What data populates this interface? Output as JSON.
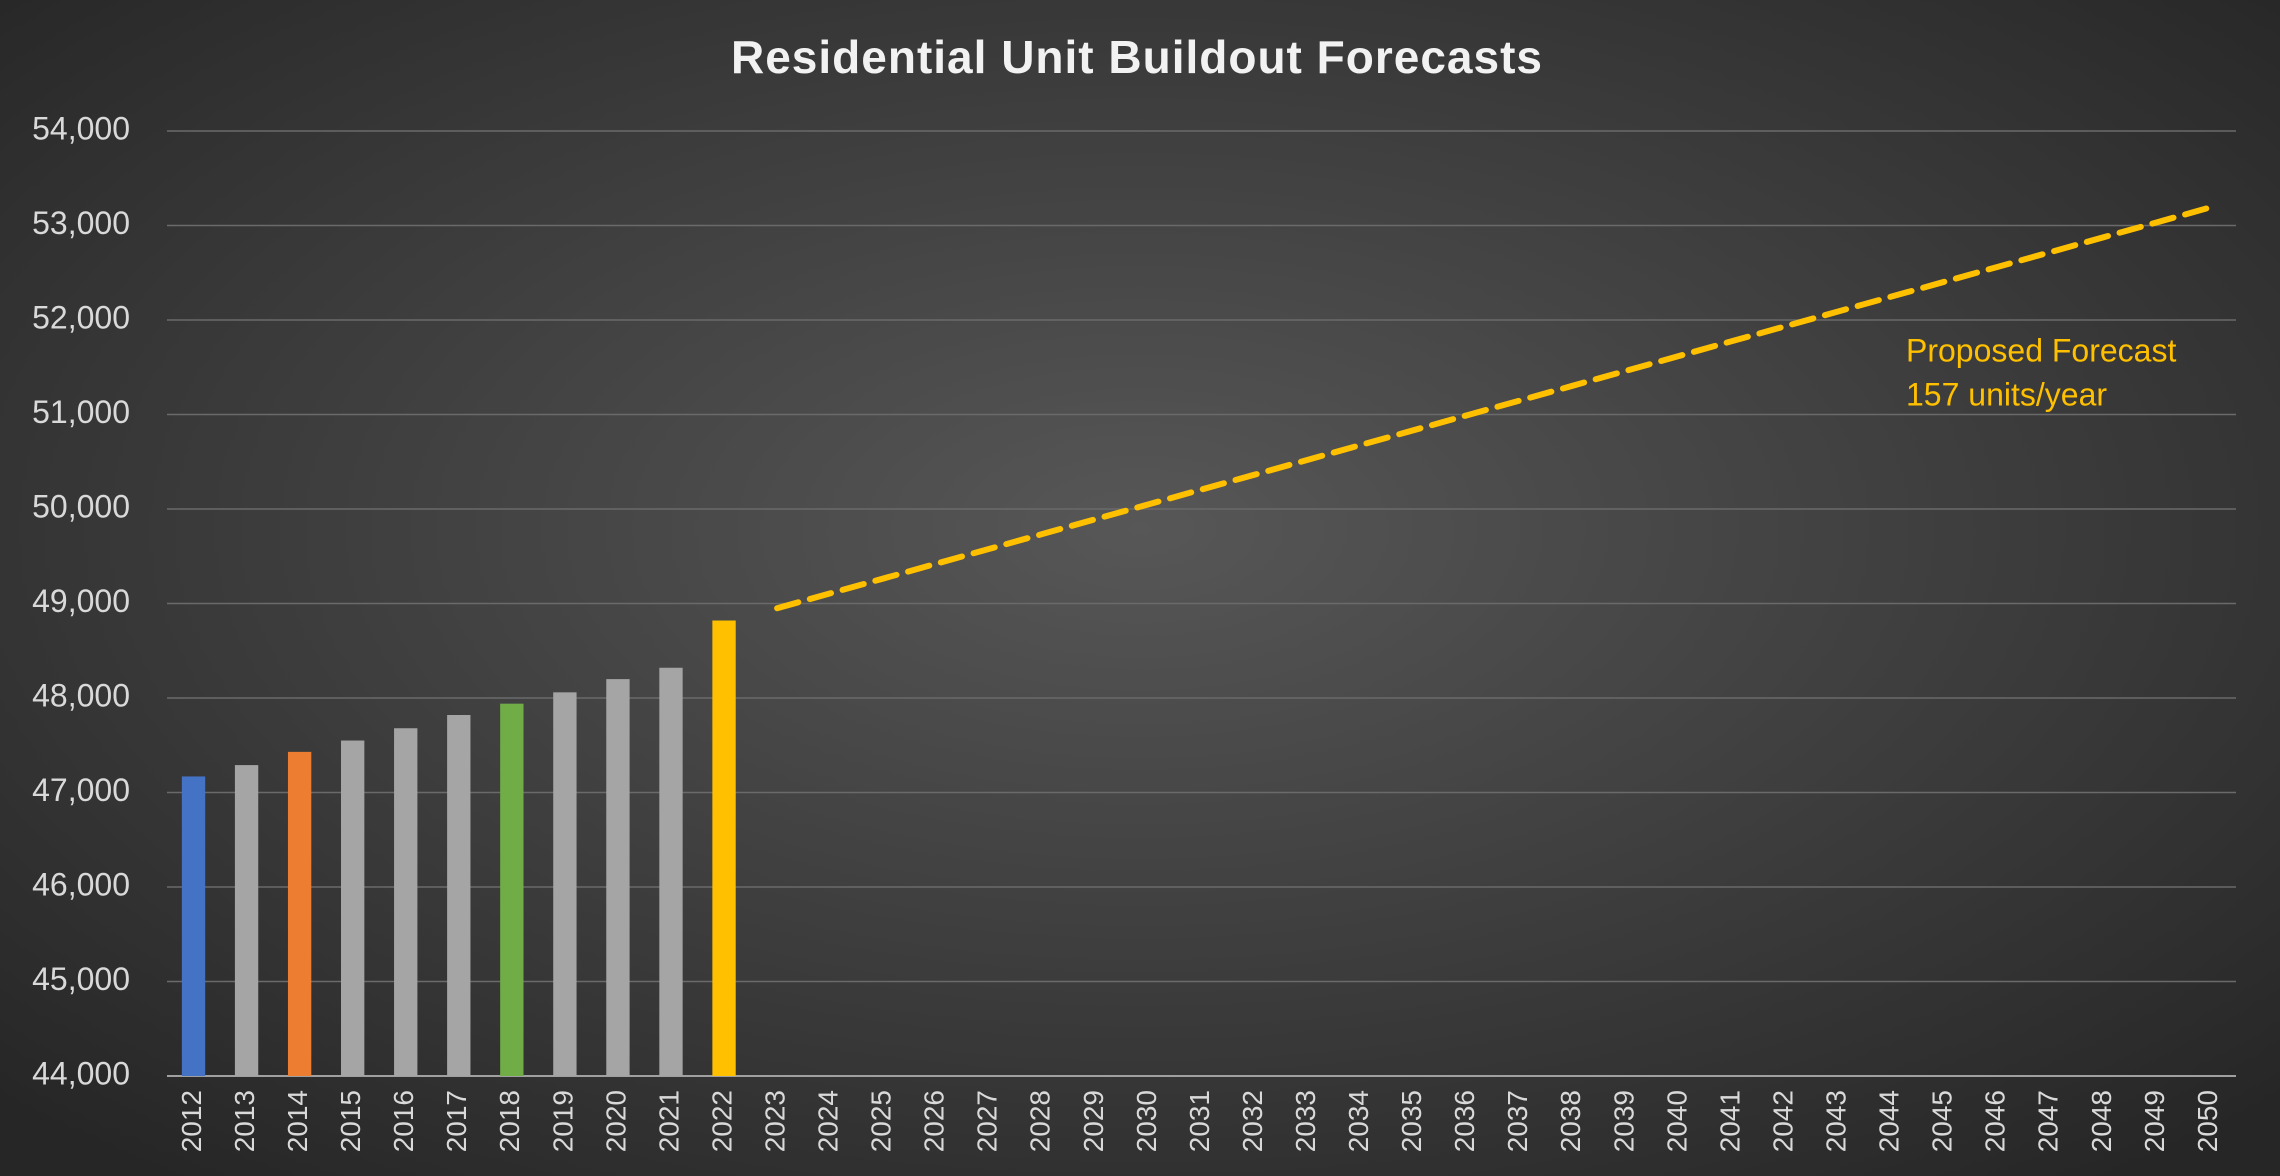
{
  "chart_data": {
    "type": "bar",
    "title": "Residential Unit Buildout Forecasts",
    "categories": [
      "2012",
      "2013",
      "2014",
      "2015",
      "2016",
      "2017",
      "2018",
      "2019",
      "2020",
      "2021",
      "2022",
      "2023",
      "2024",
      "2025",
      "2026",
      "2027",
      "2028",
      "2029",
      "2030",
      "2031",
      "2032",
      "2033",
      "2034",
      "2035",
      "2036",
      "2037",
      "2038",
      "2039",
      "2040",
      "2041",
      "2042",
      "2043",
      "2044",
      "2045",
      "2046",
      "2047",
      "2048",
      "2049",
      "2050"
    ],
    "bars": {
      "values": [
        47170,
        47290,
        47430,
        47550,
        47680,
        47820,
        47940,
        48060,
        48200,
        48320,
        48820,
        null,
        null,
        null,
        null,
        null,
        null,
        null,
        null,
        null,
        null,
        null,
        null,
        null,
        null,
        null,
        null,
        null,
        null,
        null,
        null,
        null,
        null,
        null,
        null,
        null,
        null,
        null,
        null
      ],
      "colors": [
        "#4472c4",
        "#a5a5a5",
        "#ed7d31",
        "#a5a5a5",
        "#a5a5a5",
        "#a5a5a5",
        "#70ad47",
        "#a5a5a5",
        "#a5a5a5",
        "#a5a5a5",
        "#ffc000",
        null,
        null,
        null,
        null,
        null,
        null,
        null,
        null,
        null,
        null,
        null,
        null,
        null,
        null,
        null,
        null,
        null,
        null,
        null,
        null,
        null,
        null,
        null,
        null,
        null,
        null,
        null,
        null
      ]
    },
    "forecast": {
      "color": "#ffc000",
      "values": [
        null,
        null,
        null,
        null,
        null,
        null,
        null,
        null,
        null,
        null,
        null,
        48950,
        49107,
        49264,
        49421,
        49578,
        49735,
        49892,
        50049,
        50206,
        50363,
        50520,
        50677,
        50834,
        50991,
        51148,
        51305,
        51462,
        51619,
        51776,
        51933,
        52090,
        52247,
        52404,
        52561,
        52718,
        52875,
        53032,
        53189
      ]
    },
    "annotation": [
      "Proposed Forecast",
      "157 units/year"
    ],
    "ylim": [
      44000,
      54000
    ],
    "yticks": [
      {
        "value": 44000,
        "label": "44,000"
      },
      {
        "value": 45000,
        "label": "45,000"
      },
      {
        "value": 46000,
        "label": "46,000"
      },
      {
        "value": 47000,
        "label": "47,000"
      },
      {
        "value": 48000,
        "label": "48,000"
      },
      {
        "value": 49000,
        "label": "49,000"
      },
      {
        "value": 50000,
        "label": "50,000"
      },
      {
        "value": 51000,
        "label": "51,000"
      },
      {
        "value": 52000,
        "label": "52,000"
      },
      {
        "value": 53000,
        "label": "53,000"
      },
      {
        "value": 54000,
        "label": "54,000"
      }
    ],
    "grid": true
  }
}
